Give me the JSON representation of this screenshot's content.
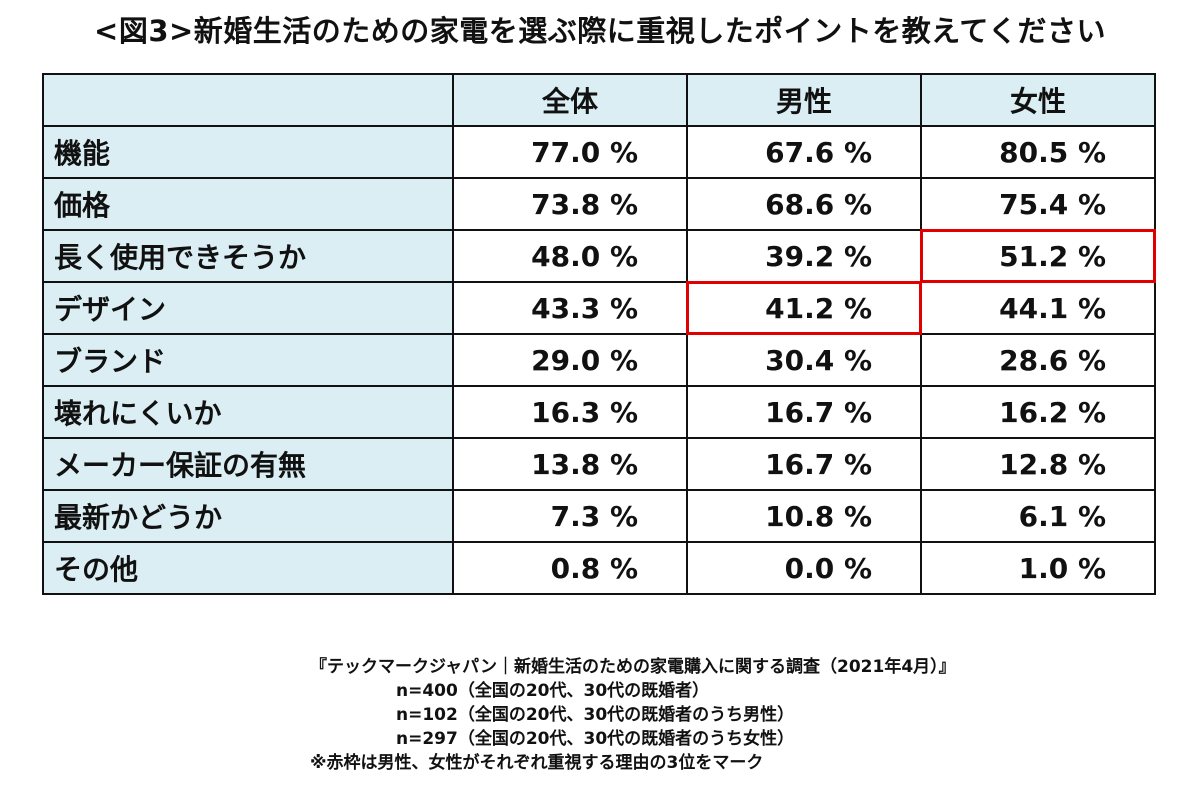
{
  "title": "<図3>新婚生活のための家電を選ぶ際に重視したポイントを教えてください",
  "colors": {
    "header_bg": "#daeef3",
    "border": "#111111",
    "highlight": "#e00000"
  },
  "chart_data": {
    "type": "table",
    "title": "<図3>新婚生活のための家電を選ぶ際に重視したポイントを教えてください",
    "columns": [
      "",
      "全体",
      "男性",
      "女性"
    ],
    "unit": "%",
    "rows": [
      {
        "label": "機能",
        "values": [
          "77.0 %",
          "67.6 %",
          "80.5 %"
        ],
        "highlight": [
          false,
          false,
          false
        ]
      },
      {
        "label": "価格",
        "values": [
          "73.8 %",
          "68.6 %",
          "75.4 %"
        ],
        "highlight": [
          false,
          false,
          false
        ]
      },
      {
        "label": "長く使用できそうか",
        "values": [
          "48.0 %",
          "39.2 %",
          "51.2 %"
        ],
        "highlight": [
          false,
          false,
          true
        ]
      },
      {
        "label": "デザイン",
        "values": [
          "43.3 %",
          "41.2 %",
          "44.1 %"
        ],
        "highlight": [
          false,
          true,
          false
        ]
      },
      {
        "label": "ブランド",
        "values": [
          "29.0 %",
          "30.4 %",
          "28.6 %"
        ],
        "highlight": [
          false,
          false,
          false
        ]
      },
      {
        "label": "壊れにくいか",
        "values": [
          "16.3 %",
          "16.7 %",
          "16.2 %"
        ],
        "highlight": [
          false,
          false,
          false
        ]
      },
      {
        "label": "メーカー保証の有無",
        "values": [
          "13.8 %",
          "16.7 %",
          "12.8 %"
        ],
        "highlight": [
          false,
          false,
          false
        ]
      },
      {
        "label": "最新かどうか",
        "values": [
          "7.3 %",
          "10.8 %",
          "6.1 %"
        ],
        "highlight": [
          false,
          false,
          false
        ]
      },
      {
        "label": "その他",
        "values": [
          "0.8 %",
          "0.0 %",
          "1.0 %"
        ],
        "highlight": [
          false,
          false,
          false
        ]
      }
    ]
  },
  "source": {
    "line1": "『テックマークジャパン｜新婚生活のための家電購入に関する調査（2021年4月）』",
    "line2": "n=400（全国の20代、30代の既婚者）",
    "line3": "n=102（全国の20代、30代の既婚者のうち男性）",
    "line4": "n=297（全国の20代、30代の既婚者のうち女性）",
    "note": "※赤枠は男性、女性がそれぞれ重視する理由の3位をマーク"
  }
}
